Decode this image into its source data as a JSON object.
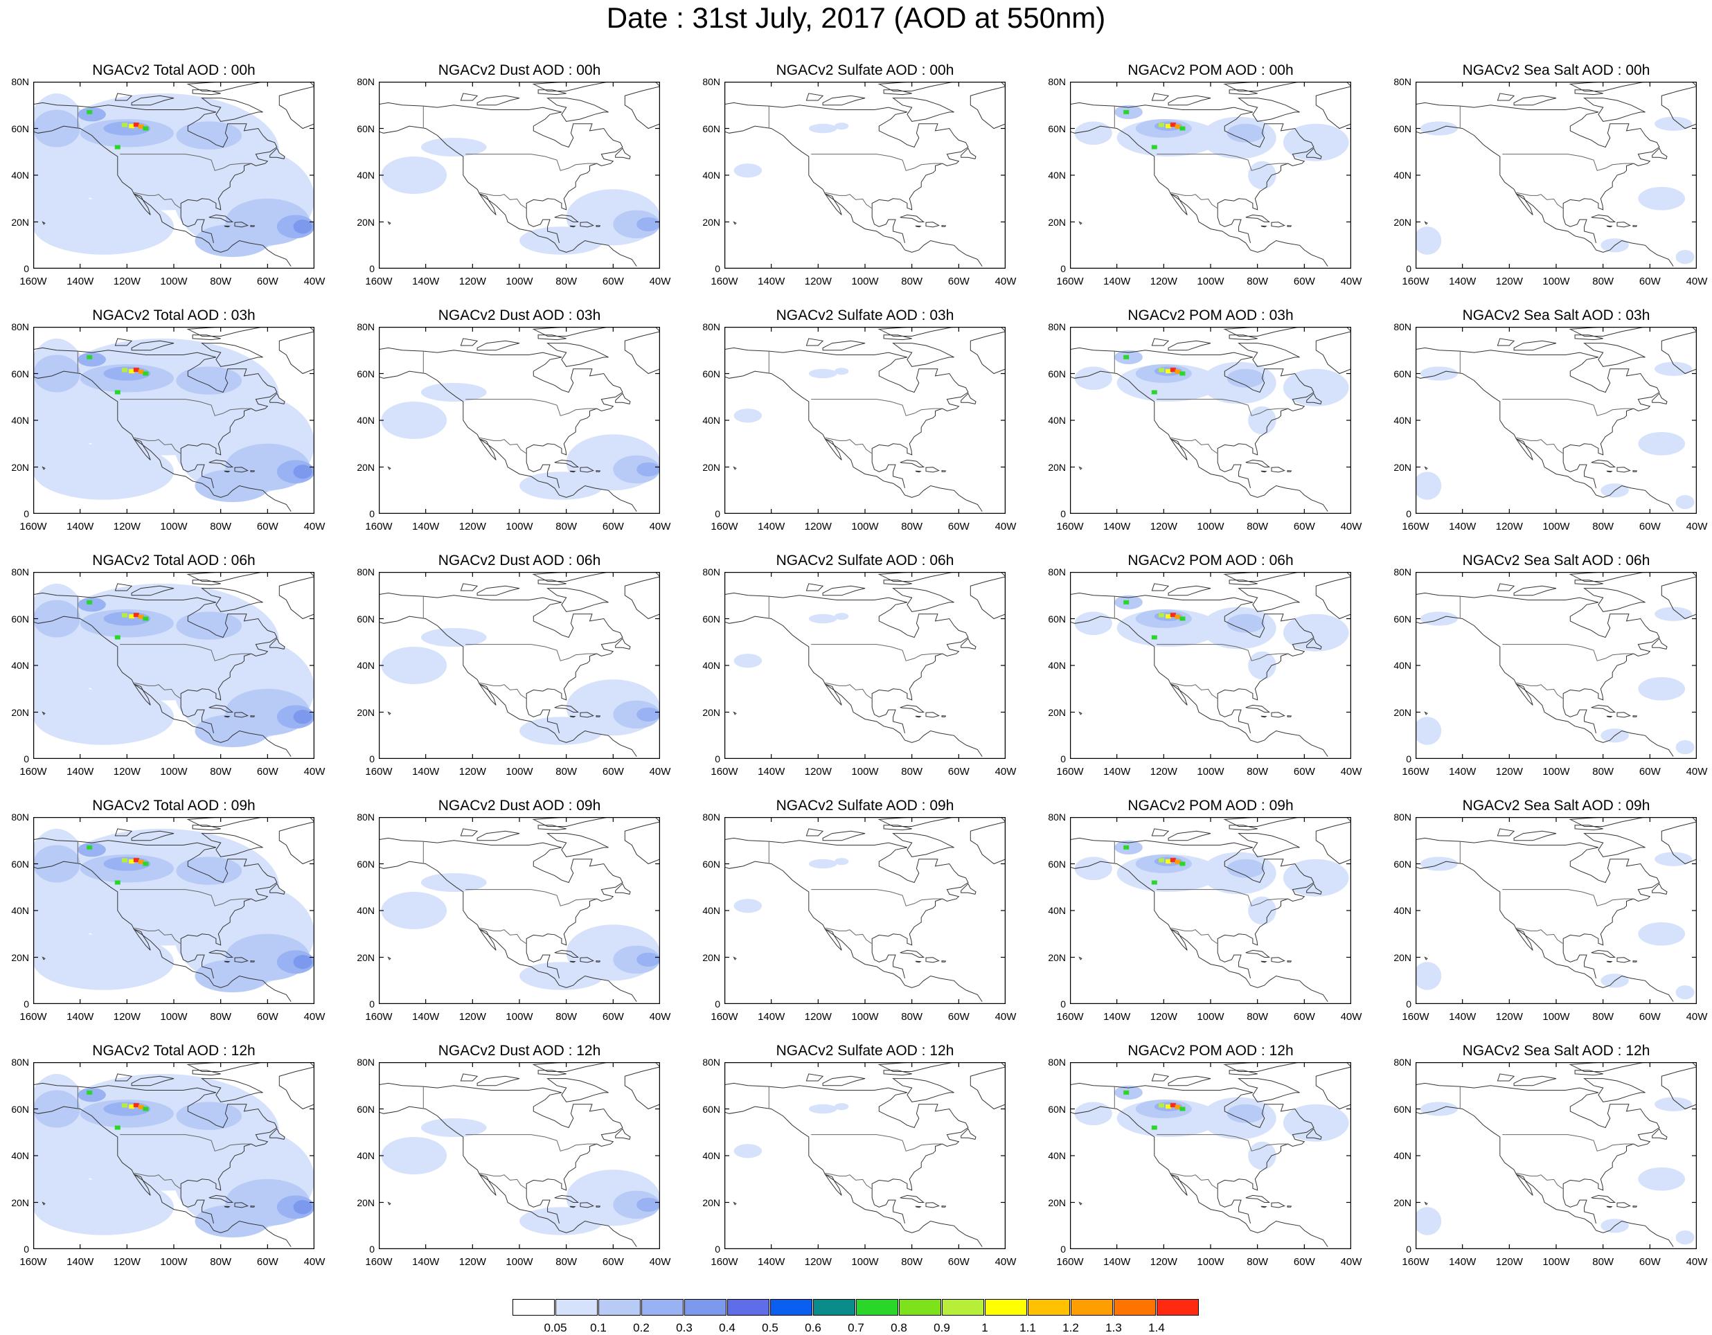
{
  "title": "Date : 31st July, 2017 (AOD at 550nm)",
  "y_ticks": [
    "80N",
    "60N",
    "40N",
    "20N",
    "0"
  ],
  "x_ticks": [
    "160W",
    "140W",
    "120W",
    "100W",
    "80W",
    "60W",
    "40W"
  ],
  "rows": [
    {
      "titles": [
        "NGACv2 Total AOD : 00h",
        "NGACv2 Dust AOD : 00h",
        "NGACv2 Sulfate AOD : 00h",
        "NGACv2 POM AOD : 00h",
        "NGACv2 Sea Salt AOD : 00h"
      ]
    },
    {
      "titles": [
        "NGACv2 Total AOD : 03h",
        "NGACv2 Dust AOD : 03h",
        "NGACv2 Sulfate AOD : 03h",
        "NGACv2 POM AOD : 03h",
        "NGACv2 Sea Salt AOD : 03h"
      ]
    },
    {
      "titles": [
        "NGACv2 Total AOD : 06h",
        "NGACv2 Dust AOD : 06h",
        "NGACv2 Sulfate AOD : 06h",
        "NGACv2 POM AOD : 06h",
        "NGACv2 Sea Salt AOD : 06h"
      ]
    },
    {
      "titles": [
        "NGACv2 Total AOD : 09h",
        "NGACv2 Dust AOD : 09h",
        "NGACv2 Sulfate AOD : 09h",
        "NGACv2 POM AOD : 09h",
        "NGACv2 Sea Salt  AOD : 09h"
      ]
    },
    {
      "titles": [
        "NGACv2 Total AOD  : 12h",
        "NGACv2 Dust AOD : 12h",
        "NGACv2 Sulfate AOD : 12h",
        "NGACv2 POM  AOD : 12h",
        "NGACv2 Sea Salt  AOD : 12h"
      ]
    }
  ],
  "colorbar": {
    "labels": [
      "0.05",
      "0.1",
      "0.2",
      "0.3",
      "0.4",
      "0.5",
      "0.6",
      "0.7",
      "0.8",
      "0.9",
      "1",
      "1.1",
      "1.2",
      "1.3",
      "1.4"
    ],
    "colors": [
      "#ffffff",
      "#d6e2fb",
      "#b8cbf6",
      "#98b2f3",
      "#7d99ee",
      "#5f6ee6",
      "#0a5ff0",
      "#0b8c8c",
      "#2bd62b",
      "#7de21c",
      "#b7ee3a",
      "#ffff00",
      "#ffc100",
      "#ff9e00",
      "#ff7400",
      "#ff2a10"
    ]
  },
  "styles": {
    "aod_light": "#d6e2fb",
    "aod_mid": "#b8cbf6",
    "aod_strong": "#98b2f3",
    "aod_deep": "#7d99ee",
    "coast": "#333333"
  }
}
